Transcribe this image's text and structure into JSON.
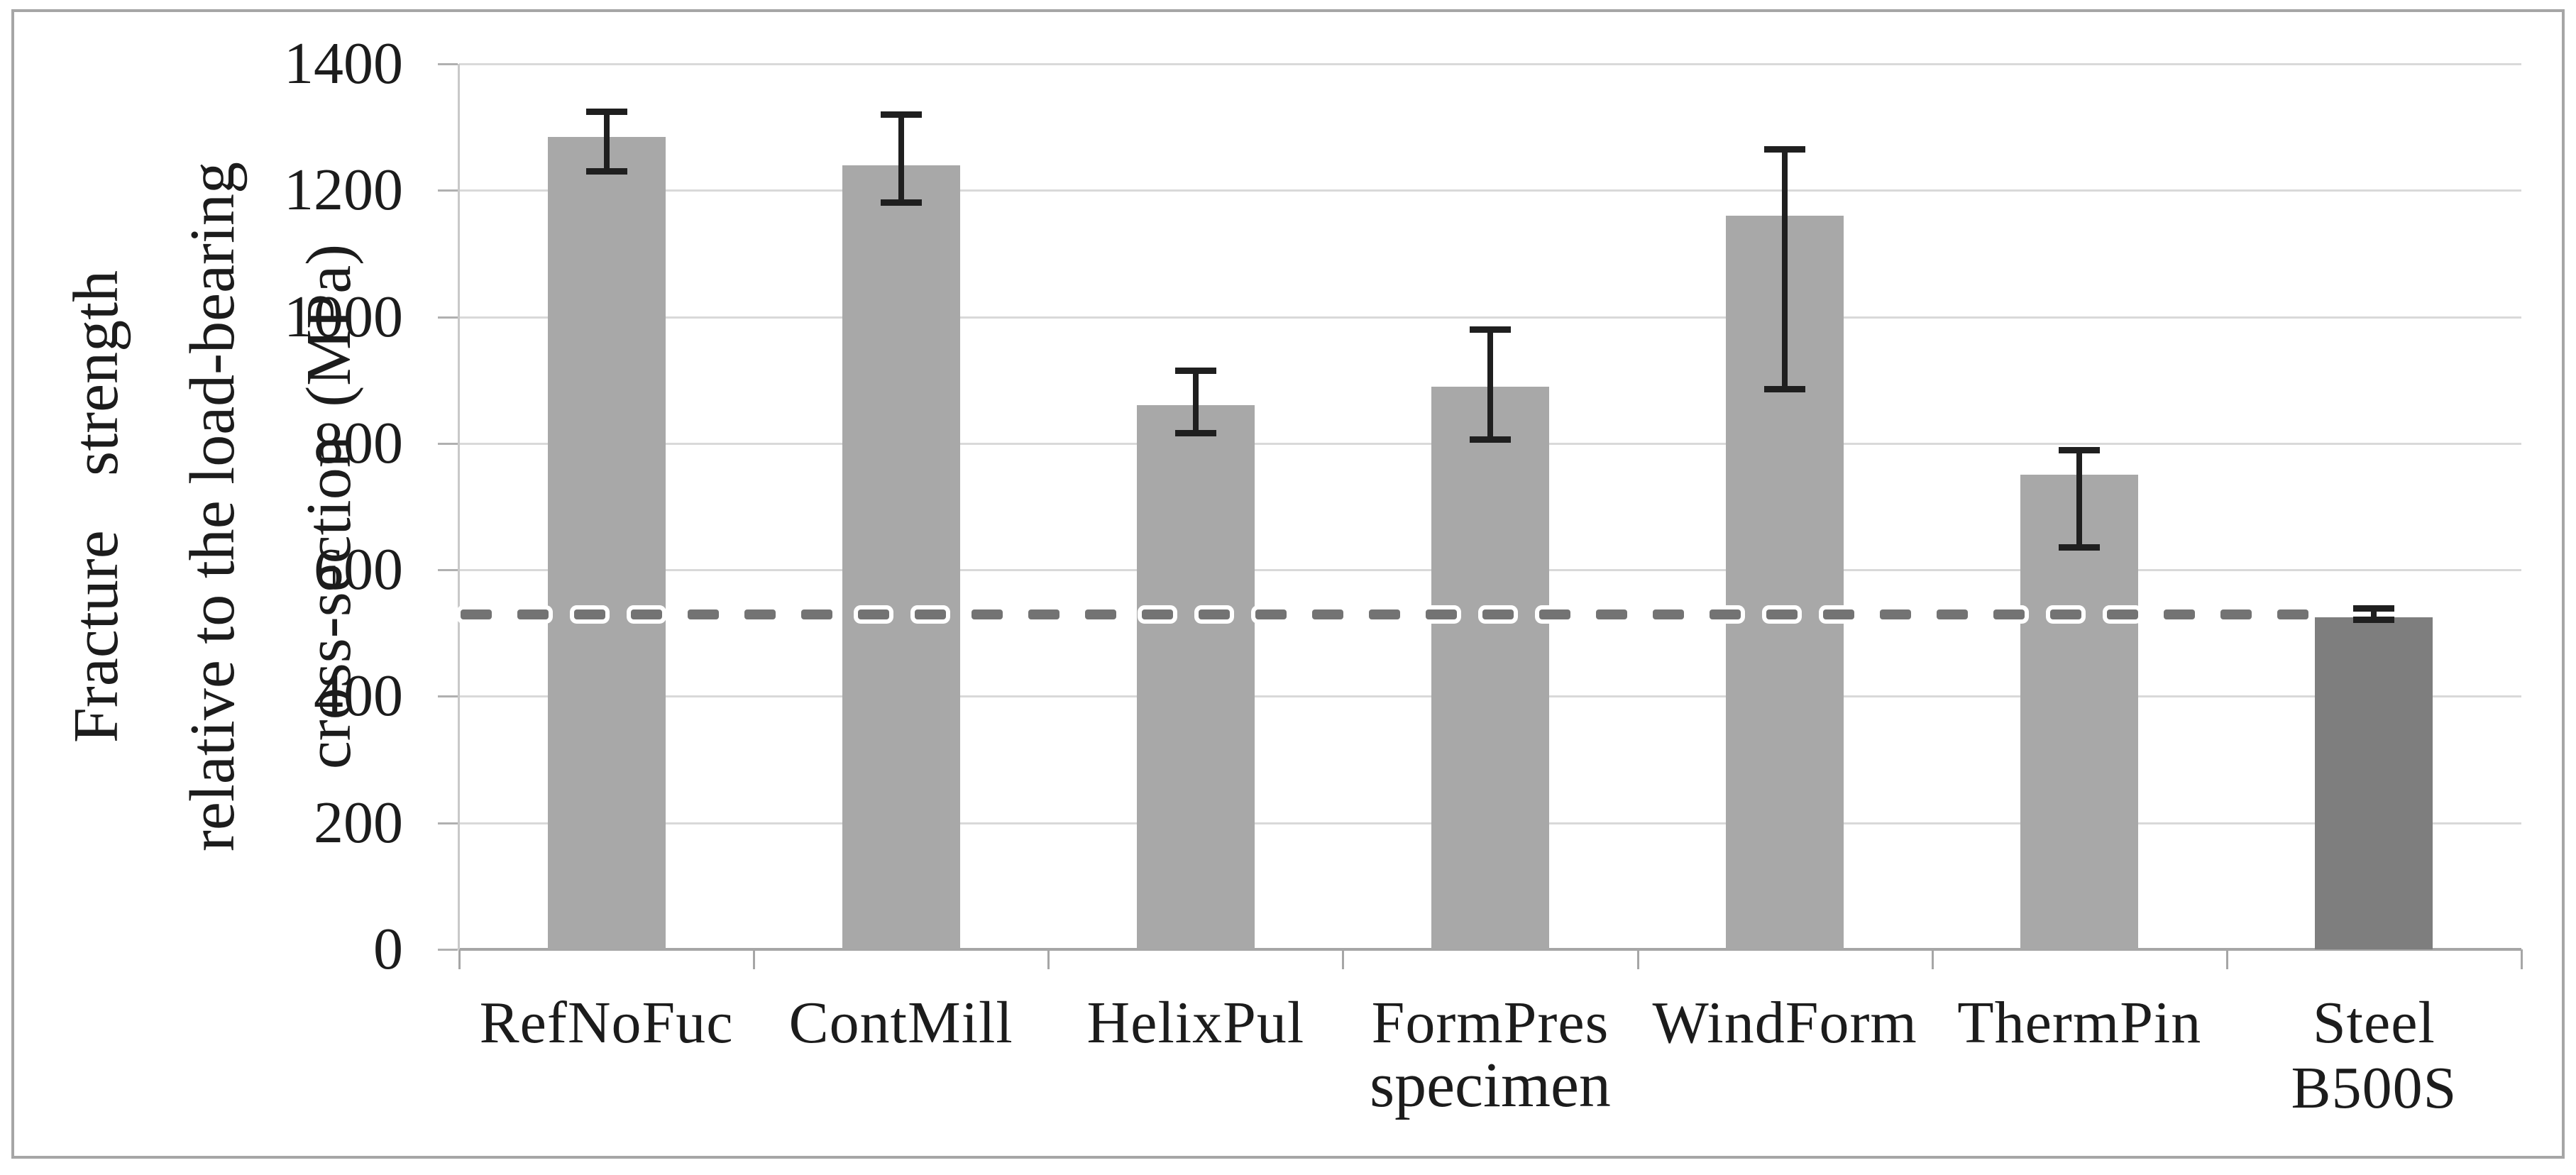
{
  "chart_data": {
    "type": "bar",
    "title": "",
    "xlabel": "specimen",
    "ylabel_lines": [
      "Fracture strength",
      "relative to the load-bearing",
      "cross-section (MPa)"
    ],
    "ylabel": "Fracture strength relative to the load-bearing cross-section (MPa)",
    "categories": [
      "RefNoFuc",
      "ContMill",
      "HelixPul",
      "FormPres",
      "WindForm",
      "ThermPin",
      "Steel B500S"
    ],
    "series": [
      {
        "name": "Fracture strength (MPa)",
        "values": [
          1285,
          1240,
          860,
          890,
          1160,
          750,
          525
        ],
        "error_low": [
          1230,
          1180,
          815,
          805,
          885,
          635,
          520
        ],
        "error_high": [
          1325,
          1320,
          915,
          980,
          1265,
          790,
          540
        ]
      }
    ],
    "reference_line": {
      "value": 530,
      "style": "dashed",
      "ends_at_category": "Steel B500S"
    },
    "ylim": [
      0,
      1400
    ],
    "yticks": [
      0,
      200,
      400,
      600,
      800,
      1000,
      1200,
      1400
    ],
    "grid": true,
    "legend_position": "none",
    "highlight_category": "Steel B500S"
  },
  "colors": {
    "bar": "#a8a8a8",
    "bar_steel": "#7e7e7e",
    "gridline": "#d9d9d9",
    "axis": "#a6a6a6",
    "error_bar": "#1f1f1f",
    "dashed_line": "#737373",
    "frame_border": "#a6a6a6",
    "text": "#1c1c1c",
    "background": "#ffffff"
  }
}
